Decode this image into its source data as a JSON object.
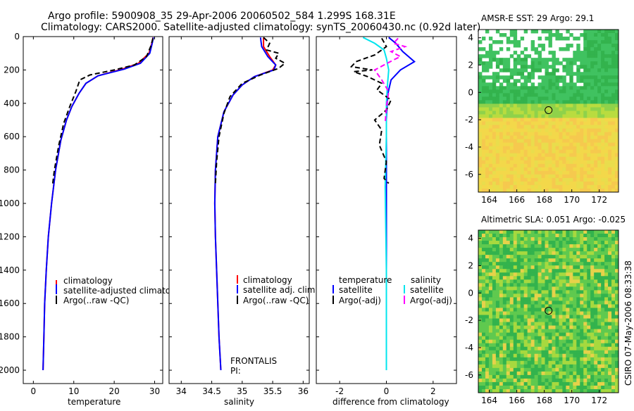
{
  "figure": {
    "title_line1": "Argo profile:  5900908_35 29-Apr-2006 20060502_584 1.299S 168.31E",
    "title_line2": "Climatology: CARS2000. Satellite-adjusted climatology: synTS_20060430.nc (0.92d later)",
    "side_label": "CSIRO 07-May-2006 08:33:38"
  },
  "chart_data": [
    {
      "type": "line",
      "xlabel": "temperature",
      "xticks": [
        0,
        10,
        20,
        30
      ],
      "yticks": [
        0,
        200,
        400,
        600,
        800,
        1000,
        1200,
        1400,
        1600,
        1800,
        2000
      ],
      "xlim": [
        -2.5,
        32
      ],
      "ylim": [
        2080,
        0
      ],
      "legend": [
        "climatology",
        "satellite-adjusted climatology",
        "Argo(..raw -QC)"
      ],
      "legend_placement": "lower-right",
      "series": [
        {
          "name": "climatology",
          "color": "#ff0000",
          "style": "solid",
          "x": [
            29.6,
            29.3,
            28.6,
            26.0,
            22.0,
            16.0,
            13.0,
            11.3,
            9.5,
            8.2,
            6.8,
            5.5,
            4.5,
            3.7,
            3.2,
            2.8,
            2.6,
            2.4
          ],
          "y": [
            5,
            40,
            100,
            160,
            195,
            235,
            280,
            340,
            420,
            500,
            620,
            800,
            1000,
            1200,
            1400,
            1600,
            1800,
            2000
          ]
        },
        {
          "name": "satellite-adjusted climatology",
          "color": "#0000ff",
          "style": "solid",
          "x": [
            29.7,
            29.4,
            28.8,
            26.5,
            22.5,
            16.0,
            13.0,
            11.3,
            9.5,
            8.2,
            6.8,
            5.5,
            4.5,
            3.7,
            3.2,
            2.8,
            2.6,
            2.4
          ],
          "y": [
            5,
            40,
            100,
            160,
            195,
            235,
            280,
            340,
            420,
            500,
            620,
            800,
            1000,
            1200,
            1400,
            1600,
            1800,
            2000
          ]
        },
        {
          "name": "Argo(..raw -QC)",
          "color": "#000000",
          "style": "dashed",
          "x": [
            29.6,
            29.0,
            28.0,
            25.0,
            20.0,
            14.0,
            11.5,
            10.5,
            9.0,
            7.5,
            6.3,
            5.2,
            4.8
          ],
          "y": [
            10,
            60,
            120,
            170,
            200,
            230,
            260,
            330,
            420,
            520,
            650,
            800,
            880
          ]
        }
      ]
    },
    {
      "type": "line",
      "xlabel": "salinity",
      "xticks": [
        34,
        34.5,
        35,
        35.5,
        36
      ],
      "yticks": [
        0,
        200,
        400,
        600,
        800,
        1000,
        1200,
        1400,
        1600,
        1800,
        2000
      ],
      "xlim": [
        33.8,
        36.1
      ],
      "ylim": [
        2080,
        0
      ],
      "legend": [
        "climatology",
        "satellite adj. clim.",
        "Argo(..raw -QC)"
      ],
      "legend_placement": "lower-right",
      "series": [
        {
          "name": "climatology",
          "color": "#ff0000",
          "style": "solid",
          "x": [
            35.35,
            35.35,
            35.45,
            35.55,
            35.5,
            35.2,
            35.0,
            34.85,
            34.7,
            34.6,
            34.56,
            34.55,
            34.56,
            34.58,
            34.6,
            34.62,
            34.65
          ],
          "y": [
            5,
            60,
            120,
            170,
            200,
            240,
            290,
            350,
            450,
            600,
            800,
            1000,
            1200,
            1400,
            1600,
            1800,
            2000
          ]
        },
        {
          "name": "satellite adj. clim.",
          "color": "#0000ff",
          "style": "solid",
          "x": [
            35.3,
            35.32,
            35.42,
            35.55,
            35.52,
            35.2,
            35.0,
            34.85,
            34.7,
            34.6,
            34.56,
            34.55,
            34.56,
            34.58,
            34.6,
            34.62,
            34.65
          ],
          "y": [
            5,
            60,
            120,
            170,
            200,
            240,
            290,
            350,
            450,
            600,
            800,
            1000,
            1200,
            1400,
            1600,
            1800,
            2000
          ]
        },
        {
          "name": "Argo(..raw -QC)",
          "color": "#000000",
          "style": "dashed",
          "x": [
            35.35,
            35.45,
            35.4,
            35.6,
            35.55,
            35.7,
            35.6,
            35.3,
            35.0,
            34.8,
            34.7,
            34.62,
            34.58,
            34.56
          ],
          "y": [
            5,
            40,
            80,
            100,
            130,
            160,
            190,
            230,
            280,
            360,
            460,
            600,
            750,
            880
          ]
        }
      ],
      "annotations": [
        "FRONTALIS",
        "PI:"
      ]
    },
    {
      "type": "line",
      "xlabel": "difference from climatology",
      "xticks": [
        -2,
        0,
        2
      ],
      "yticks": [
        0,
        200,
        400,
        600,
        800,
        1000,
        1200,
        1400,
        1600,
        1800,
        2000
      ],
      "xlim": [
        -3,
        3
      ],
      "ylim": [
        2080,
        0
      ],
      "legend_left_header": "temperature",
      "legend_left": [
        "satellite",
        "Argo(-adj)"
      ],
      "legend_right_header": "salinity",
      "legend_right": [
        "satellite",
        "Argo(-adj)"
      ],
      "legend_placement": "lower",
      "series": [
        {
          "name": "temperature satellite",
          "color": "#0000ff",
          "style": "solid",
          "x": [
            0.1,
            0.4,
            0.7,
            1.2,
            0.6,
            0.2,
            0.05,
            0.0,
            0.0,
            0.0,
            0.0
          ],
          "y": [
            5,
            40,
            90,
            150,
            200,
            260,
            350,
            500,
            800,
            1400,
            2000
          ]
        },
        {
          "name": "salinity satellite",
          "color": "#00e5ee",
          "style": "solid",
          "x": [
            -1.0,
            -0.5,
            -0.1,
            0.0,
            0.1,
            0.05,
            0.0,
            0.0,
            -0.05,
            0.0,
            0.0
          ],
          "y": [
            5,
            40,
            80,
            130,
            200,
            280,
            400,
            600,
            900,
            1400,
            2000
          ]
        },
        {
          "name": "temperature Argo(-adj)",
          "color": "#000000",
          "style": "dashed",
          "x": [
            -0.2,
            0.0,
            -0.5,
            -1.3,
            -1.5,
            -0.6,
            -1.4,
            -0.8,
            -0.2,
            -0.4,
            0.2,
            0.0,
            -0.5,
            -0.2,
            -0.3,
            0.0,
            -0.1,
            0.1
          ],
          "y": [
            10,
            60,
            110,
            150,
            180,
            200,
            210,
            240,
            280,
            320,
            380,
            440,
            500,
            560,
            650,
            750,
            850,
            880
          ]
        },
        {
          "name": "salinity Argo(-adj)",
          "color": "#ff00ff",
          "style": "dashed",
          "x": [
            0.5,
            0.3,
            0.8,
            0.2,
            0.6,
            0.3,
            -0.5,
            -0.2,
            0.1,
            0.0,
            -0.05
          ],
          "y": [
            10,
            40,
            60,
            90,
            120,
            140,
            200,
            260,
            330,
            420,
            520
          ]
        }
      ]
    },
    {
      "type": "heatmap",
      "title": "AMSR-E SST: 29 Argo: 29.1",
      "xticks": [
        164,
        166,
        168,
        170,
        172
      ],
      "yticks": [
        4,
        2,
        0,
        -2,
        -4,
        -6
      ],
      "xlim": [
        163.2,
        173.4
      ],
      "ylim": [
        -7.3,
        4.6
      ],
      "marker": {
        "lon": 168.31,
        "lat": -1.299
      }
    },
    {
      "type": "heatmap",
      "title": "Altimetric SLA: 0.051 Argo: -0.025",
      "xticks": [
        164,
        166,
        168,
        170,
        172
      ],
      "yticks": [
        4,
        2,
        0,
        -2,
        -4,
        -6
      ],
      "xlim": [
        163.2,
        173.4
      ],
      "ylim": [
        -7.3,
        4.6
      ],
      "marker": {
        "lon": 168.31,
        "lat": -1.299
      }
    }
  ]
}
